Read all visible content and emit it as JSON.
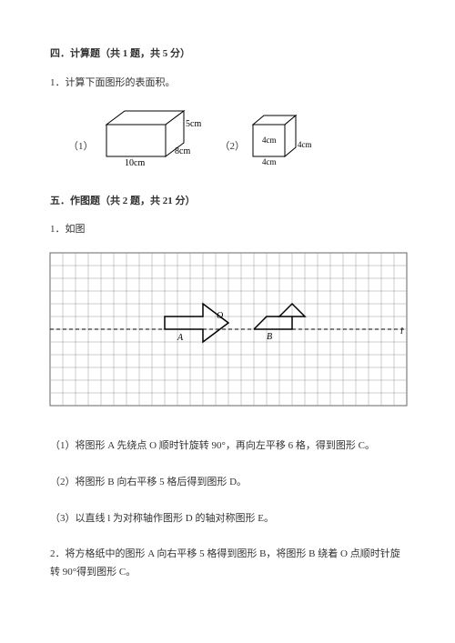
{
  "section4": {
    "header": "四．计算题（共 1 题，共 5 分）",
    "q1_text": "1．计算下面图形的表面积。",
    "fig1_label": "（1）",
    "fig2_label": "（2）",
    "cuboid": {
      "length": "10cm",
      "width": "8cm",
      "height": "5cm",
      "stroke": "#000000",
      "fill": "#ffffff"
    },
    "cube": {
      "side": "4cm",
      "stroke": "#000000",
      "fill": "#ffffff"
    }
  },
  "section5": {
    "header": "五．作图题（共 2 题，共 21 分）",
    "q1_text": "1．如图",
    "grid": {
      "cols": 28,
      "rows": 12,
      "cell": 14,
      "stroke": "#999999",
      "axis_color": "#000000",
      "labelA": "A",
      "labelB": "B",
      "labelO": "O",
      "axis_label": "l"
    },
    "task1": "（1）将图形 A 先绕点 O 顺时针旋转 90°，再向左平移 6 格，得到图形 C。",
    "task2": "（2）将图形 B 向右平移 5 格后得到图形 D。",
    "task3": "（3）以直线 l 为对称轴作图形 D 的轴对称图形 E。",
    "q2_text": "2．将方格纸中的图形 A 向右平移 5 格得到图形 B，将图形 B 绕着 O 点顺时针旋转 90°得到图形 C。"
  }
}
